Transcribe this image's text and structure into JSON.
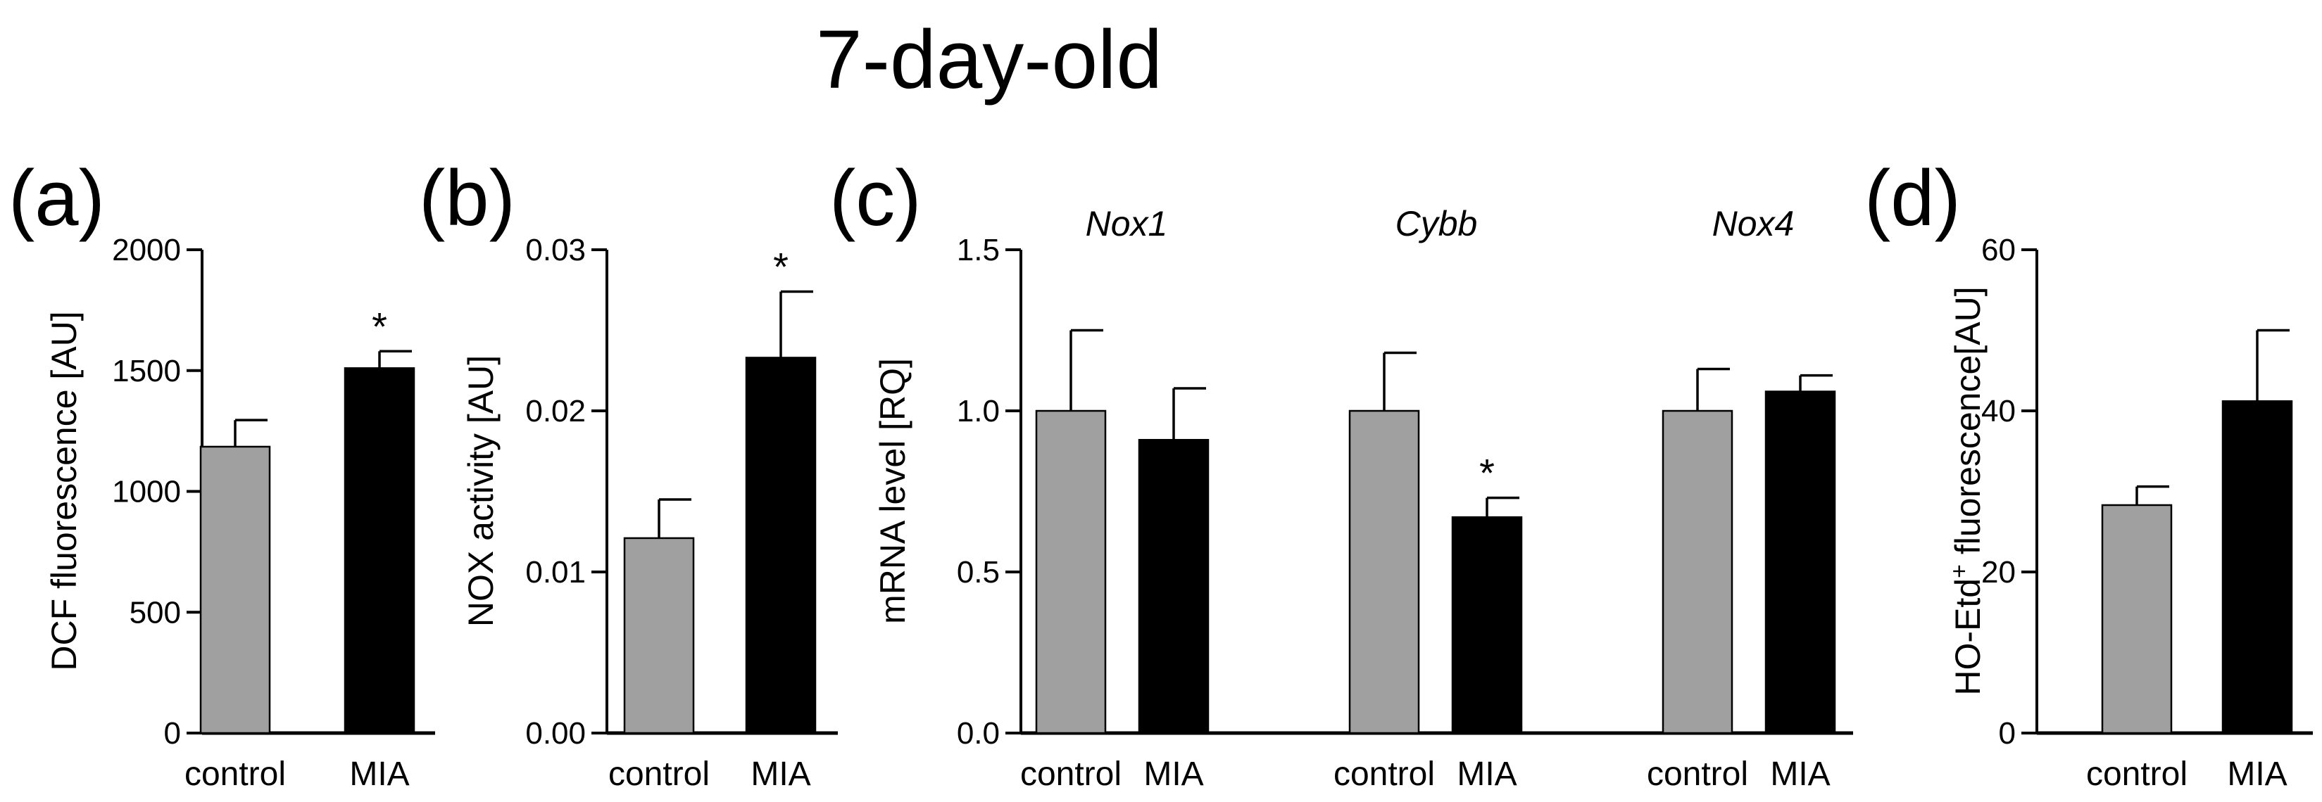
{
  "figure_title": "7-day-old",
  "colors": {
    "control": "#a0a0a0",
    "mia": "#000000",
    "axis": "#000000"
  },
  "chart_data": [
    {
      "panel": "(a)",
      "type": "bar",
      "title": "",
      "xlabel": "",
      "ylabel": "DCF fluorescence [AU]",
      "ylabel_sup": "",
      "ylabel_post": "",
      "ylim": [
        0,
        2000
      ],
      "yticks": [
        0,
        500,
        1000,
        1500,
        2000
      ],
      "ytick_labels": [
        "0",
        "500",
        "1000",
        "1500",
        "2000"
      ],
      "groups": [
        {
          "gene": "",
          "bars": [
            {
              "category": "control",
              "value": 1185,
              "error": 110,
              "significant": false
            },
            {
              "category": "MIA",
              "value": 1510,
              "error": 70,
              "significant": true,
              "mark": "*"
            }
          ]
        }
      ]
    },
    {
      "panel": "(b)",
      "type": "bar",
      "title": "",
      "xlabel": "",
      "ylabel": "NOX activity [AU]",
      "ylabel_sup": "",
      "ylabel_post": "",
      "ylim": [
        0,
        0.03
      ],
      "yticks": [
        0,
        0.01,
        0.02,
        0.03
      ],
      "ytick_labels": [
        "0.00",
        "0.01",
        "0.02",
        "0.03"
      ],
      "groups": [
        {
          "gene": "",
          "bars": [
            {
              "category": "control",
              "value": 0.0121,
              "error": 0.0024,
              "significant": false
            },
            {
              "category": "MIA",
              "value": 0.0233,
              "error": 0.0041,
              "significant": true,
              "mark": "*"
            }
          ]
        }
      ]
    },
    {
      "panel": "(c)",
      "type": "bar",
      "title": "",
      "xlabel": "",
      "ylabel": "mRNA level [RQ]",
      "ylabel_sup": "",
      "ylabel_post": "",
      "ylim": [
        0,
        1.5
      ],
      "yticks": [
        0,
        0.5,
        1.0,
        1.5
      ],
      "ytick_labels": [
        "0.0",
        "0.5",
        "1.0",
        "1.5"
      ],
      "groups": [
        {
          "gene": "Nox1",
          "bars": [
            {
              "category": "control",
              "value": 1.0,
              "error": 0.25,
              "significant": false
            },
            {
              "category": "MIA",
              "value": 0.91,
              "error": 0.16,
              "significant": false
            }
          ]
        },
        {
          "gene": "Cybb",
          "bars": [
            {
              "category": "control",
              "value": 1.0,
              "error": 0.18,
              "significant": false
            },
            {
              "category": "MIA",
              "value": 0.67,
              "error": 0.06,
              "significant": true,
              "mark": "*"
            }
          ]
        },
        {
          "gene": "Nox4",
          "bars": [
            {
              "category": "control",
              "value": 1.0,
              "error": 0.13,
              "significant": false
            },
            {
              "category": "MIA",
              "value": 1.06,
              "error": 0.05,
              "significant": false
            }
          ]
        }
      ]
    },
    {
      "panel": "(d)",
      "type": "bar",
      "title": "",
      "xlabel": "",
      "ylabel": "HO-Etd",
      "ylabel_sup": "+",
      "ylabel_post": " fluorescence[AU]",
      "ylim": [
        0,
        60
      ],
      "yticks": [
        0,
        20,
        40,
        60
      ],
      "ytick_labels": [
        "0",
        "20",
        "40",
        "60"
      ],
      "groups": [
        {
          "gene": "",
          "bars": [
            {
              "category": "control",
              "value": 28.3,
              "error": 2.3,
              "significant": false
            },
            {
              "category": "MIA",
              "value": 41.2,
              "error": 8.8,
              "significant": false
            }
          ]
        }
      ]
    }
  ]
}
